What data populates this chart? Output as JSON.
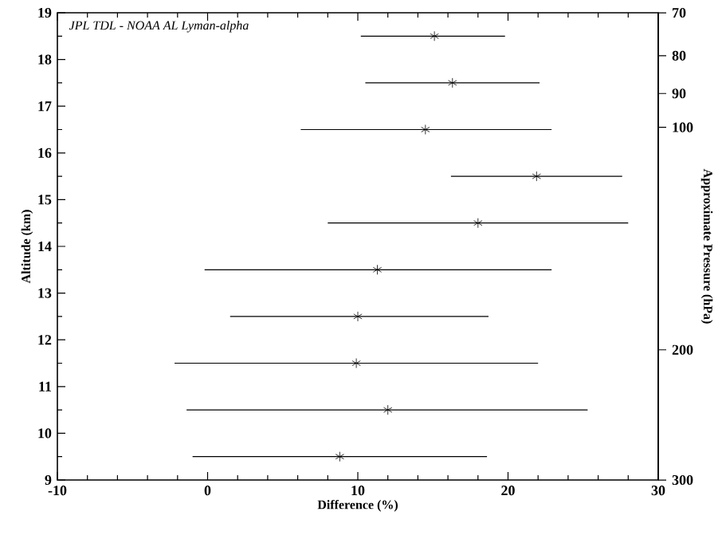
{
  "chart_data": {
    "type": "scatter",
    "xlabel": "Difference (%)",
    "ylabel": "Altitude (km)",
    "y2label": "Approximate Pressure (hPa)",
    "annotations": [
      "JPL TDL - NOAA AL Lyman-alpha"
    ],
    "x": [
      8.8,
      12.0,
      9.9,
      10.0,
      11.3,
      18.0,
      21.9,
      14.5,
      16.3,
      15.1
    ],
    "values": [
      9.5,
      10.5,
      11.5,
      12.5,
      13.5,
      14.5,
      15.5,
      16.5,
      17.5,
      18.5
    ],
    "xerrors": [
      [
        -1.0,
        18.6
      ],
      [
        -1.4,
        25.3
      ],
      [
        -2.2,
        22.0
      ],
      [
        1.5,
        18.7
      ],
      [
        -0.2,
        22.9
      ],
      [
        8.0,
        28.0
      ],
      [
        16.2,
        27.6
      ],
      [
        6.2,
        22.9
      ],
      [
        10.5,
        22.1
      ],
      [
        10.2,
        19.8
      ]
    ],
    "color": "#000000",
    "marker": "cross",
    "xlim": [
      -10,
      30
    ],
    "xticks": [
      -10,
      0,
      10,
      20,
      30
    ],
    "ylim": [
      9,
      19
    ],
    "yticks": [
      9,
      10,
      11,
      12,
      13,
      14,
      15,
      16,
      17,
      18,
      19
    ],
    "y2lim": [
      300,
      70
    ],
    "log": "y2",
    "y2ticks": [
      300,
      200,
      100,
      90,
      80,
      70
    ]
  }
}
